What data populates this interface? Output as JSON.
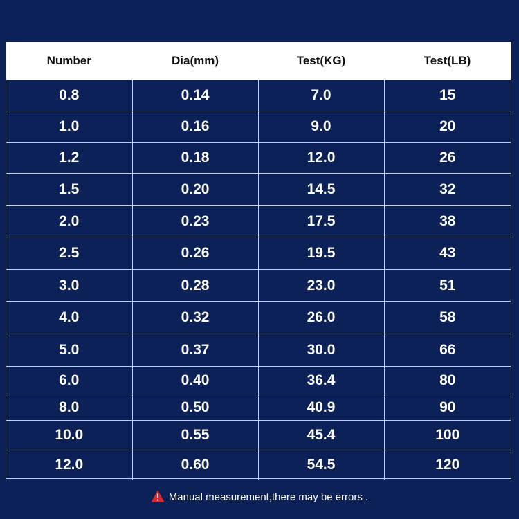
{
  "colors": {
    "background": "#0b2157",
    "header_bg": "#ffffff",
    "header_text": "#111111",
    "cell_text": "#ffffff",
    "grid_line": "#c9d1e0",
    "warning_icon": "#e0262b"
  },
  "table": {
    "headers": [
      "Number",
      "Dia(mm)",
      "Test(KG)",
      "Test(LB)"
    ],
    "rows": [
      [
        "0.8",
        "0.14",
        "7.0",
        "15"
      ],
      [
        "1.0",
        "0.16",
        "9.0",
        "20"
      ],
      [
        "1.2",
        "0.18",
        "12.0",
        "26"
      ],
      [
        "1.5",
        "0.20",
        "14.5",
        "32"
      ],
      [
        "2.0",
        "0.23",
        "17.5",
        "38"
      ],
      [
        "2.5",
        "0.26",
        "19.5",
        "43"
      ],
      [
        "3.0",
        "0.28",
        "23.0",
        "51"
      ],
      [
        "4.0",
        "0.32",
        "26.0",
        "58"
      ],
      [
        "5.0",
        "0.37",
        "30.0",
        "66"
      ],
      [
        "6.0",
        "0.40",
        "36.4",
        "80"
      ],
      [
        "8.0",
        "0.50",
        "40.9",
        "90"
      ],
      [
        "10.0",
        "0.55",
        "45.4",
        "100"
      ],
      [
        "12.0",
        "0.60",
        "54.5",
        "120"
      ]
    ]
  },
  "footnote": {
    "icon": "warning-triangle-icon",
    "text": "Manual measurement,there may be errors ."
  }
}
